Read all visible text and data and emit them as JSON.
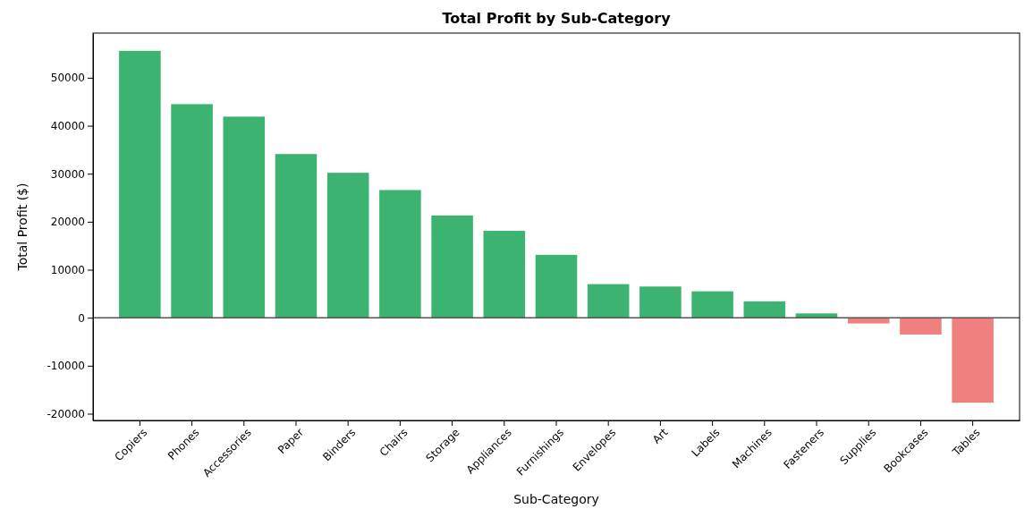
{
  "chart_data": {
    "type": "bar",
    "title": "Total Profit by Sub-Category",
    "xlabel": "Sub-Category",
    "ylabel": "Total Profit ($)",
    "categories": [
      "Copiers",
      "Phones",
      "Accessories",
      "Paper",
      "Binders",
      "Chairs",
      "Storage",
      "Appliances",
      "Furnishings",
      "Envelopes",
      "Art",
      "Labels",
      "Machines",
      "Fasteners",
      "Supplies",
      "Bookcases",
      "Tables"
    ],
    "values": [
      55600,
      44500,
      41900,
      34100,
      30200,
      26600,
      21300,
      18100,
      13100,
      7000,
      6500,
      5500,
      3400,
      900,
      -1200,
      -3500,
      -17700
    ],
    "colors": [
      "#3cb371",
      "#3cb371",
      "#3cb371",
      "#3cb371",
      "#3cb371",
      "#3cb371",
      "#3cb371",
      "#3cb371",
      "#3cb371",
      "#3cb371",
      "#3cb371",
      "#3cb371",
      "#3cb371",
      "#3cb371",
      "#f08080",
      "#f08080",
      "#f08080"
    ],
    "ylim": [
      -21400,
      59300
    ],
    "yticks": [
      -20000,
      -10000,
      0,
      10000,
      20000,
      30000,
      40000,
      50000
    ],
    "ref_lines": [
      {
        "axis": "y",
        "value": 0,
        "color": "#555555"
      }
    ],
    "grid": false
  }
}
